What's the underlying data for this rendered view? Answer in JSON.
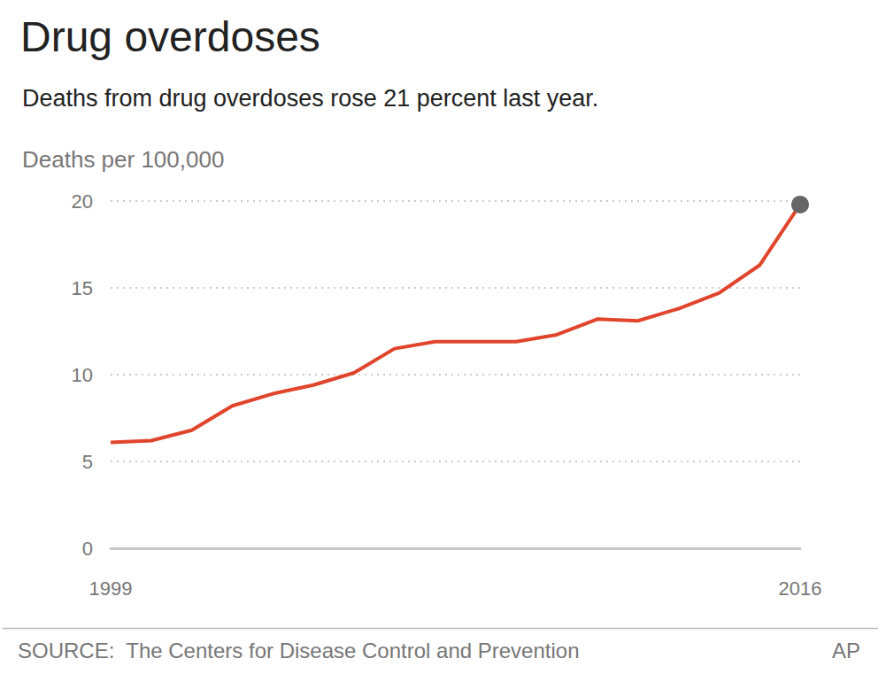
{
  "chart_data": {
    "type": "line",
    "title": "Drug overdoses",
    "subtitle": "Deaths from drug overdoses rose 21 percent last year.",
    "y_label": "Deaths per 100,000",
    "source": "SOURCE:  The Centers for Disease Control and Prevention",
    "credit": "AP",
    "categories": [
      "1999",
      null,
      null,
      null,
      null,
      null,
      null,
      null,
      null,
      null,
      null,
      null,
      null,
      null,
      null,
      null,
      null,
      "2016"
    ],
    "values": [
      6.1,
      6.2,
      6.8,
      8.2,
      8.9,
      9.4,
      10.1,
      11.5,
      11.9,
      11.9,
      11.9,
      12.3,
      13.2,
      13.1,
      13.8,
      14.7,
      16.3,
      19.8
    ],
    "color": "#e0452c",
    "marker": "last",
    "ylim": [
      0,
      20
    ],
    "yticks": [
      0,
      5,
      10,
      15,
      20
    ],
    "grid": true
  }
}
